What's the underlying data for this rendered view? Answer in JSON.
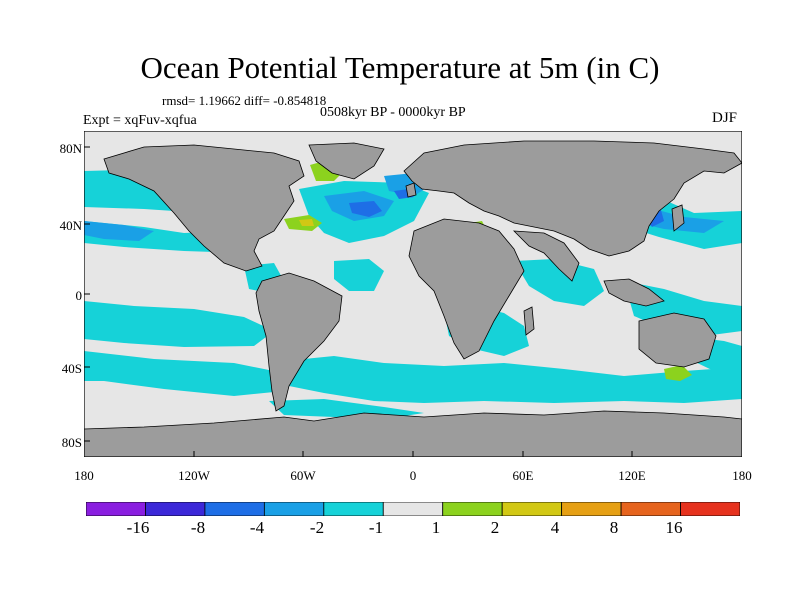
{
  "title": "Ocean Potential Temperature at 5m (in C)",
  "stats": "rmsd= 1.19662  diff= -0.854818",
  "period": "0508kyr BP - 0000kyr BP",
  "experiment": "Expt = xqFuv-xqfua",
  "season": "DJF",
  "lat_labels": [
    "80N",
    "40N",
    "0",
    "40S",
    "80S"
  ],
  "lon_labels": [
    "180",
    "120W",
    "60W",
    "0",
    "60E",
    "120E",
    "180"
  ],
  "colorbar": {
    "labels": [
      "-16",
      "-8",
      "-4",
      "-2",
      "-1",
      "1",
      "2",
      "4",
      "8",
      "16"
    ],
    "colors": [
      "#8a1ee0",
      "#3c28d8",
      "#1e6ee6",
      "#1aa0e6",
      "#16d2d8",
      "#e6e6e6",
      "#8cd21e",
      "#d2c814",
      "#e6a014",
      "#e6641e",
      "#e6321e"
    ]
  },
  "colors": {
    "land": "#9c9c9c",
    "ocean_neutral": "#e6e6e6",
    "cyan": "#16d2d8",
    "light_blue": "#1aa0e6",
    "blue": "#1e6ee6",
    "green": "#8cd21e",
    "yellow": "#d2c814"
  }
}
